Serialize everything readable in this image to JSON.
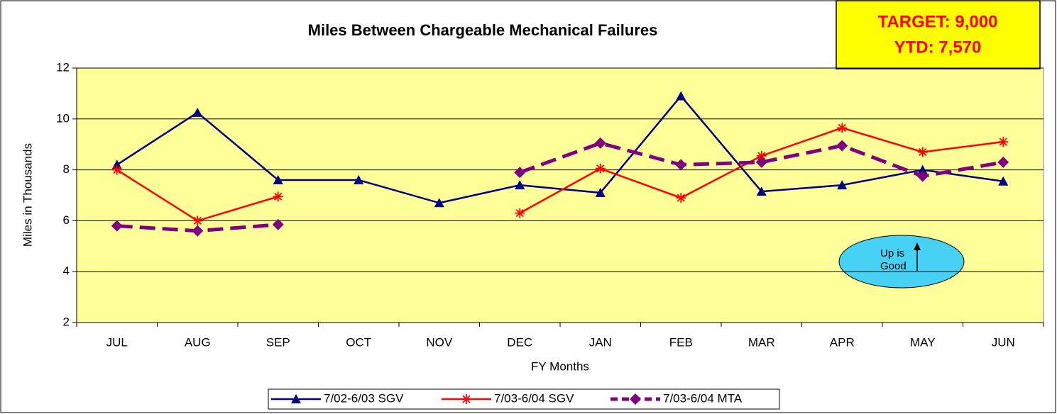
{
  "chart_data": {
    "type": "line",
    "title": "Miles Between Chargeable Mechanical Failures",
    "annotations": [
      "TARGET: 9,000",
      "YTD: 7,570",
      "Up is",
      "Good"
    ],
    "x_label": "FY Months",
    "y_label": "Miles in Thousands",
    "categories": [
      "JUL",
      "AUG",
      "SEP",
      "OCT",
      "NOV",
      "DEC",
      "JAN",
      "FEB",
      "MAR",
      "APR",
      "MAY",
      "JUN"
    ],
    "series": [
      {
        "name": "7/02-6/03 SGV",
        "color": "#000080",
        "marker": "triangle",
        "dashed": false,
        "values": [
          8.2,
          10.25,
          7.6,
          7.6,
          6.7,
          7.4,
          7.1,
          10.9,
          7.15,
          7.4,
          8.0,
          7.55
        ]
      },
      {
        "name": "7/03-6/04 SGV",
        "color": "#ff0000",
        "marker": "star",
        "dashed": false,
        "values": [
          8.0,
          6.0,
          6.95,
          null,
          null,
          6.3,
          8.05,
          6.9,
          8.55,
          9.65,
          8.7,
          9.1
        ]
      },
      {
        "name": "7/03-6/04 MTA",
        "color": "#800080",
        "marker": "diamond",
        "dashed": true,
        "values": [
          5.8,
          5.6,
          5.85,
          null,
          null,
          7.9,
          9.05,
          8.2,
          8.3,
          8.95,
          7.75,
          8.3
        ]
      }
    ],
    "ylim": [
      2,
      12
    ],
    "yticks": [
      2,
      4,
      6,
      8,
      10,
      12
    ],
    "grid": true,
    "legend": "bottom"
  }
}
